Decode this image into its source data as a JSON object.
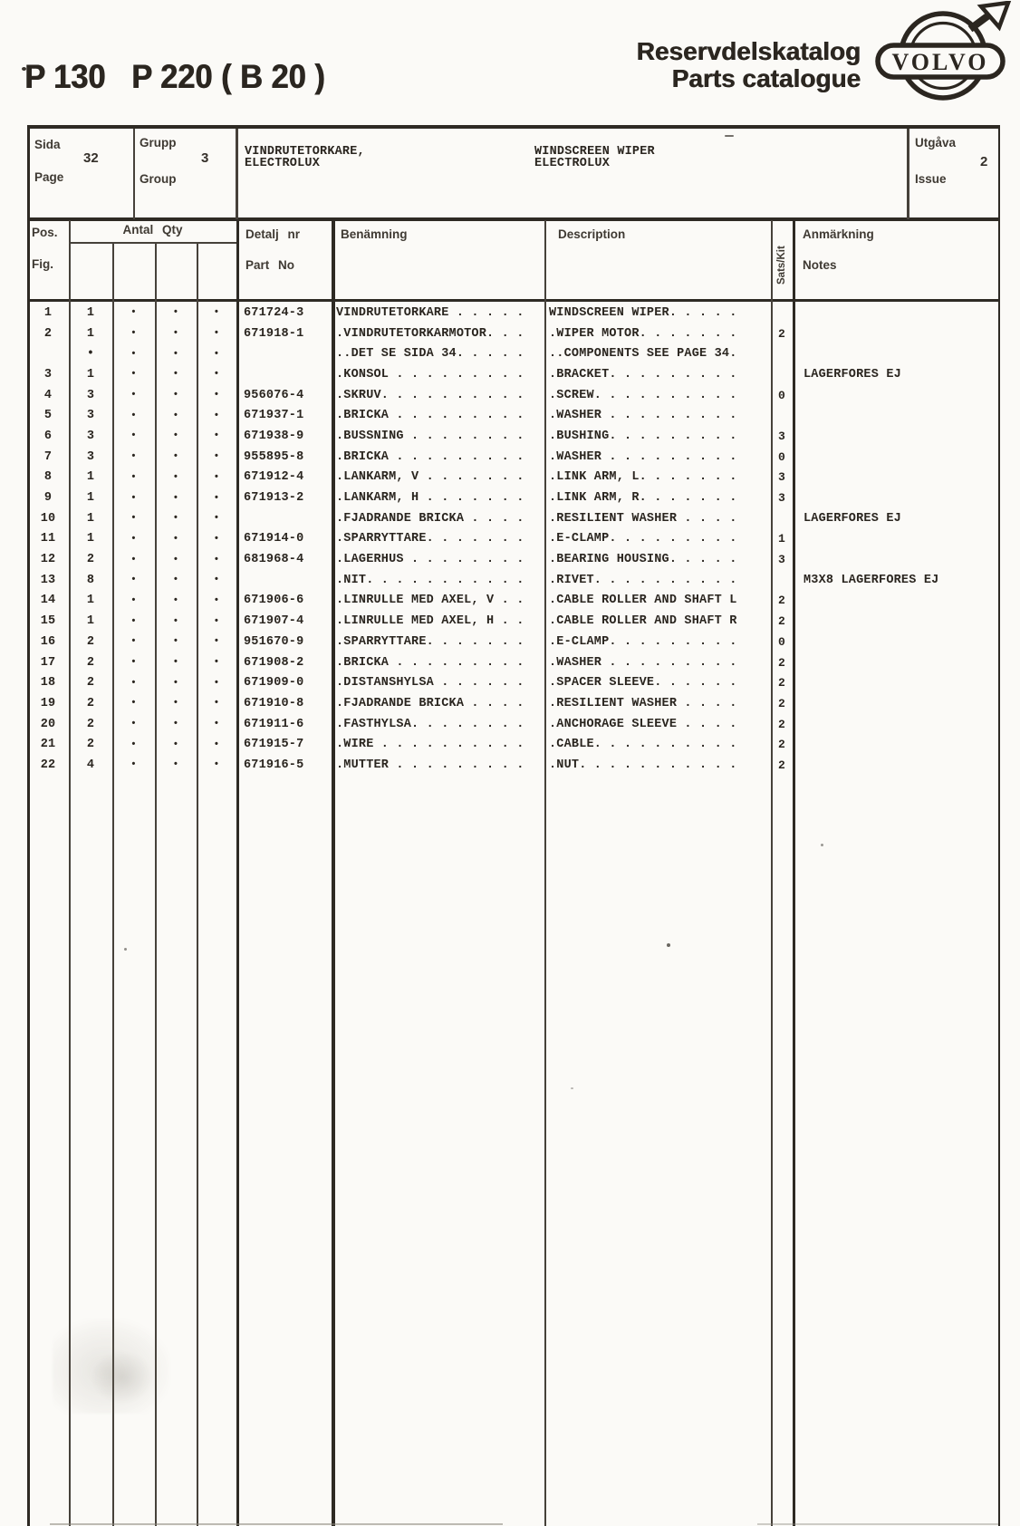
{
  "header": {
    "model_title": "P 130   P 220 ( B 20 )",
    "catalog_title_sv": "Reservdelskatalog",
    "catalog_title_en": "Parts catalogue",
    "brand": "VOLVO"
  },
  "info_row": {
    "sida_label": "Sida",
    "page_label": "Page",
    "page_number": "32",
    "grupp_label": "Grupp",
    "group_label": "Group",
    "group_number": "3",
    "title_sv_line1": "VINDRUTETORKARE,",
    "title_sv_line2": "ELECTROLUX",
    "title_en_line1": "WINDSCREEN WIPER",
    "title_en_line2": "ELECTROLUX",
    "utgava_label": "Utgåva",
    "issue_label": "Issue",
    "issue_number": "2"
  },
  "column_headers": {
    "pos": "Pos.",
    "fig": "Fig.",
    "antal_qty": "Antal Qty",
    "detalj_nr": "Detalj nr",
    "part_no": "Part No",
    "benamning": "Benämning",
    "description": "Description",
    "sats_kit": "Sats/Kit",
    "anmarkning": "Anmärkning",
    "notes": "Notes"
  },
  "table": {
    "qty_dot": "•",
    "rows": [
      {
        "pos": "1",
        "qty": "1",
        "part_no": "671724-3",
        "benamning": "VINDRUTETORKARE . . . . .",
        "description": "WINDSCREEN WIPER. . . . .",
        "sats": "",
        "notes": ""
      },
      {
        "pos": "2",
        "qty": "1",
        "part_no": "671918-1",
        "benamning": ".VINDRUTETORKARMOTOR. . .",
        "description": ".WIPER MOTOR. . . . . . .",
        "sats": "2",
        "notes": ""
      },
      {
        "pos": "",
        "qty": "•",
        "part_no": "",
        "benamning": "..DET SE SIDA 34. . . . .",
        "description": "..COMPONENTS SEE PAGE 34.",
        "sats": "",
        "notes": ""
      },
      {
        "pos": "3",
        "qty": "1",
        "part_no": "",
        "benamning": ".KONSOL . . . . . . . . .",
        "description": ".BRACKET. . . . . . . . .",
        "sats": "",
        "notes": "LAGERFÖRES EJ"
      },
      {
        "pos": "4",
        "qty": "3",
        "part_no": "956076-4",
        "benamning": ".SKRUV. . . . . . . . . .",
        "description": ".SCREW. . . . . . . . . .",
        "sats": "0",
        "notes": ""
      },
      {
        "pos": "5",
        "qty": "3",
        "part_no": "671937-1",
        "benamning": ".BRICKA . . . . . . . . .",
        "description": ".WASHER . . . . . . . . .",
        "sats": "",
        "notes": ""
      },
      {
        "pos": "6",
        "qty": "3",
        "part_no": "671938-9",
        "benamning": ".BUSSNING . . . . . . . .",
        "description": ".BUSHING. . . . . . . . .",
        "sats": "3",
        "notes": ""
      },
      {
        "pos": "7",
        "qty": "3",
        "part_no": "955895-8",
        "benamning": ".BRICKA . . . . . . . . .",
        "description": ".WASHER . . . . . . . . .",
        "sats": "0",
        "notes": ""
      },
      {
        "pos": "8",
        "qty": "1",
        "part_no": "671912-4",
        "benamning": ".LÄNKARM, V . . . . . . .",
        "description": ".LINK ARM, L. . . . . . .",
        "sats": "3",
        "notes": ""
      },
      {
        "pos": "9",
        "qty": "1",
        "part_no": "671913-2",
        "benamning": ".LÄNKARM, H . . . . . . .",
        "description": ".LINK ARM, R. . . . . . .",
        "sats": "3",
        "notes": ""
      },
      {
        "pos": "10",
        "qty": "1",
        "part_no": "",
        "benamning": ".FJÄDRANDE BRICKA . . . .",
        "description": ".RESILIENT WASHER . . . .",
        "sats": "",
        "notes": "LAGERFÖRES EJ"
      },
      {
        "pos": "11",
        "qty": "1",
        "part_no": "671914-0",
        "benamning": ".SPÄRRYTTARE. . . . . . .",
        "description": ".E-CLAMP. . . . . . . . .",
        "sats": "1",
        "notes": ""
      },
      {
        "pos": "12",
        "qty": "2",
        "part_no": "681968-4",
        "benamning": ".LAGERHUS . . . . . . . .",
        "description": ".BEARING HOUSING. . . . .",
        "sats": "3",
        "notes": ""
      },
      {
        "pos": "13",
        "qty": "8",
        "part_no": "",
        "benamning": ".NIT. . . . . . . . . . .",
        "description": ".RIVET. . . . . . . . . .",
        "sats": "",
        "notes": "M3X8 LAGERFÖRES EJ"
      },
      {
        "pos": "14",
        "qty": "1",
        "part_no": "671906-6",
        "benamning": ".LINRULLE MED AXEL, V . .",
        "description": ".CABLE ROLLER AND SHAFT L",
        "sats": "2",
        "notes": ""
      },
      {
        "pos": "15",
        "qty": "1",
        "part_no": "671907-4",
        "benamning": ".LINRULLE MED AXEL, H . .",
        "description": ".CABLE ROLLER AND SHAFT R",
        "sats": "2",
        "notes": ""
      },
      {
        "pos": "16",
        "qty": "2",
        "part_no": "951670-9",
        "benamning": ".SPÄRRYTTARE. . . . . . .",
        "description": ".E-CLAMP. . . . . . . . .",
        "sats": "0",
        "notes": ""
      },
      {
        "pos": "17",
        "qty": "2",
        "part_no": "671908-2",
        "benamning": ".BRICKA . . . . . . . . .",
        "description": ".WASHER . . . . . . . . .",
        "sats": "2",
        "notes": ""
      },
      {
        "pos": "18",
        "qty": "2",
        "part_no": "671909-0",
        "benamning": ".DISTANSHYLSA . . . . . .",
        "description": ".SPACER SLEEVE. . . . . .",
        "sats": "2",
        "notes": ""
      },
      {
        "pos": "19",
        "qty": "2",
        "part_no": "671910-8",
        "benamning": ".FJÄDRANDE BRICKA . . . .",
        "description": ".RESILIENT WASHER . . . .",
        "sats": "2",
        "notes": ""
      },
      {
        "pos": "20",
        "qty": "2",
        "part_no": "671911-6",
        "benamning": ".FÄSTHYLSA. . . . . . . .",
        "description": ".ANCHORAGE SLEEVE . . . .",
        "sats": "2",
        "notes": ""
      },
      {
        "pos": "21",
        "qty": "2",
        "part_no": "671915-7",
        "benamning": ".WIRE . . . . . . . . . .",
        "description": ".CABLE. . . . . . . . . .",
        "sats": "2",
        "notes": ""
      },
      {
        "pos": "22",
        "qty": "4",
        "part_no": "671916-5",
        "benamning": ".MUTTER . . . . . . . . .",
        "description": ".NUT. . . . . . . . . . .",
        "sats": "2",
        "notes": ""
      }
    ]
  }
}
